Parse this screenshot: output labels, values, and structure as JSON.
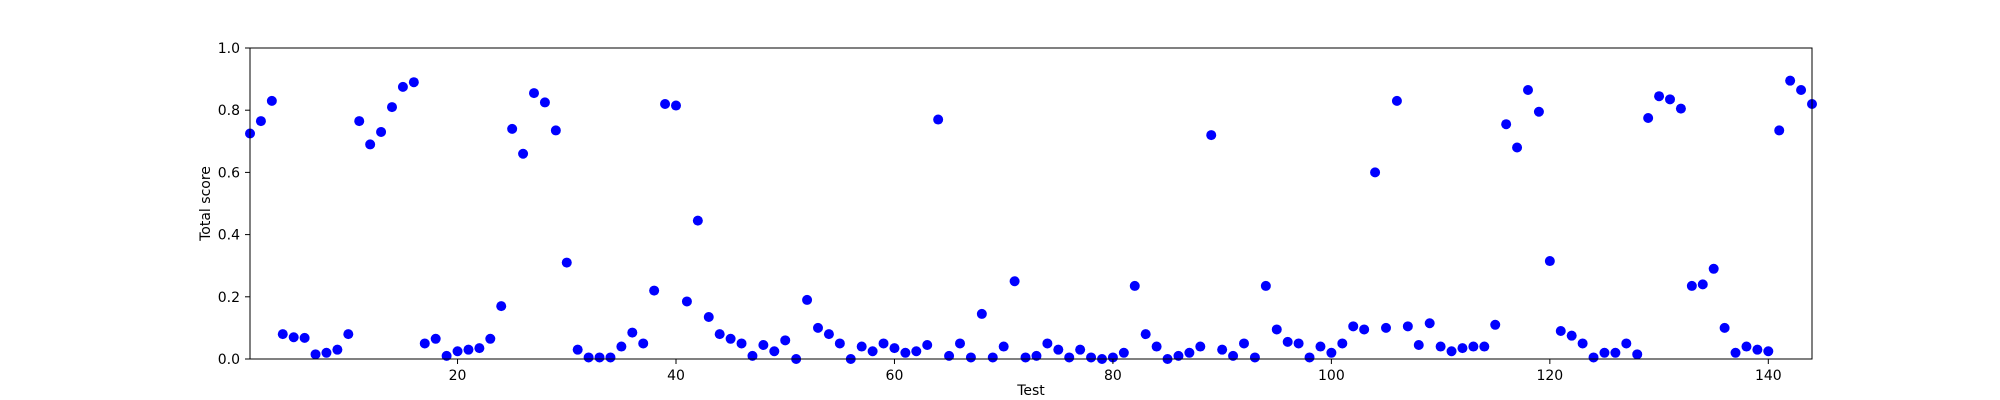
{
  "chart_data": {
    "type": "scatter",
    "title": "",
    "xlabel": "Test",
    "ylabel": "Total score",
    "xlim": [
      1,
      144
    ],
    "ylim": [
      0,
      1.0
    ],
    "xticks": [
      20,
      40,
      60,
      80,
      100,
      120,
      140
    ],
    "yticks": [
      0.0,
      0.2,
      0.4,
      0.6,
      0.8,
      1.0
    ],
    "xtick_labels": [
      "20",
      "40",
      "60",
      "80",
      "100",
      "120",
      "140"
    ],
    "ytick_labels": [
      "0.0",
      "0.2",
      "0.4",
      "0.6",
      "0.8",
      "1.0"
    ],
    "grid": false,
    "marker_color": "#0000ff",
    "series": [
      {
        "x": [
          1,
          2,
          3,
          4,
          5,
          6,
          7,
          8,
          9,
          10,
          11,
          12,
          13,
          14,
          15,
          16,
          17,
          18,
          19,
          20,
          21,
          22,
          23,
          24,
          25,
          26,
          27,
          28,
          29,
          30,
          31,
          32,
          33,
          34,
          35,
          36,
          37,
          38,
          39,
          40,
          41,
          42,
          43,
          44,
          45,
          46,
          47,
          48,
          49,
          50,
          51,
          52,
          53,
          54,
          55,
          56,
          57,
          58,
          59,
          60,
          61,
          62,
          63,
          64,
          65,
          66,
          67,
          68,
          69,
          70,
          71,
          72,
          73,
          74,
          75,
          76,
          77,
          78,
          79,
          80,
          81,
          82,
          83,
          84,
          85,
          86,
          87,
          88,
          89,
          90,
          91,
          92,
          93,
          94,
          95,
          96,
          97,
          98,
          99,
          100,
          101,
          102,
          103,
          104,
          105,
          106,
          107,
          108,
          109,
          110,
          111,
          112,
          113,
          114,
          115,
          116,
          117,
          118,
          119,
          120,
          121,
          122,
          123,
          124,
          125,
          126,
          127,
          128,
          129,
          130,
          131,
          132,
          133,
          134,
          135,
          136,
          137,
          138,
          139,
          140,
          141,
          142,
          143,
          144
        ],
        "y": [
          0.725,
          0.765,
          0.83,
          0.08,
          0.07,
          0.068,
          0.015,
          0.02,
          0.03,
          0.08,
          0.765,
          0.69,
          0.73,
          0.81,
          0.875,
          0.89,
          0.05,
          0.065,
          0.01,
          0.025,
          0.03,
          0.035,
          0.065,
          0.17,
          0.74,
          0.66,
          0.855,
          0.825,
          0.735,
          0.31,
          0.03,
          0.005,
          0.005,
          0.005,
          0.04,
          0.085,
          0.05,
          0.22,
          0.82,
          0.815,
          0.185,
          0.445,
          0.135,
          0.08,
          0.065,
          0.05,
          0.01,
          0.045,
          0.025,
          0.06,
          0.0,
          0.19,
          0.1,
          0.08,
          0.05,
          0.0,
          0.04,
          0.025,
          0.05,
          0.035,
          0.02,
          0.025,
          0.045,
          0.77,
          0.01,
          0.05,
          0.005,
          0.145,
          0.005,
          0.04,
          0.25,
          0.005,
          0.01,
          0.05,
          0.03,
          0.005,
          0.03,
          0.005,
          0.0,
          0.005,
          0.02,
          0.235,
          0.08,
          0.04,
          0.0,
          0.01,
          0.02,
          0.04,
          0.72,
          0.03,
          0.01,
          0.05,
          0.005,
          0.235,
          0.095,
          0.055,
          0.05,
          0.005,
          0.04,
          0.02,
          0.05,
          0.105,
          0.095,
          0.6,
          0.1,
          0.83,
          0.105,
          0.045,
          0.115,
          0.04,
          0.025,
          0.035,
          0.04,
          0.04,
          0.11,
          0.755,
          0.68,
          0.865,
          0.795,
          0.315,
          0.09,
          0.075,
          0.05,
          0.005,
          0.02,
          0.02,
          0.05,
          0.015,
          0.775,
          0.845,
          0.835,
          0.805,
          0.235,
          0.24,
          0.29,
          0.1,
          0.02,
          0.04,
          0.03,
          0.025,
          0.735,
          0.895,
          0.865,
          0.82
        ]
      }
    ]
  }
}
